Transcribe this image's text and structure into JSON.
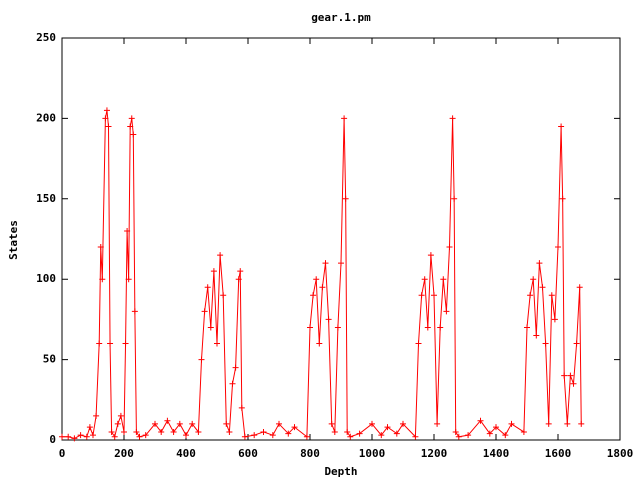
{
  "chart_data": {
    "type": "line",
    "title": "gear.1.pm",
    "x_label": "Depth",
    "y_label": "States",
    "color": "#ff0000",
    "xlim": [
      0,
      1800
    ],
    "xticks": [
      0,
      200,
      400,
      600,
      800,
      1000,
      1200,
      1400,
      1600,
      1800
    ],
    "ylim": [
      0,
      250
    ],
    "yticks": [
      0,
      50,
      100,
      150,
      200,
      250
    ],
    "grid": false,
    "x": [
      0,
      20,
      40,
      60,
      80,
      90,
      100,
      110,
      120,
      125,
      130,
      140,
      145,
      150,
      155,
      160,
      170,
      180,
      190,
      200,
      205,
      210,
      215,
      220,
      225,
      230,
      235,
      240,
      250,
      270,
      300,
      320,
      340,
      360,
      380,
      400,
      420,
      440,
      450,
      460,
      470,
      480,
      490,
      500,
      510,
      520,
      530,
      540,
      550,
      560,
      570,
      575,
      580,
      590,
      620,
      650,
      680,
      700,
      730,
      750,
      790,
      800,
      810,
      820,
      830,
      840,
      850,
      860,
      870,
      880,
      890,
      900,
      910,
      915,
      920,
      930,
      960,
      1000,
      1030,
      1050,
      1080,
      1100,
      1140,
      1150,
      1160,
      1170,
      1180,
      1190,
      1200,
      1210,
      1220,
      1230,
      1240,
      1250,
      1260,
      1265,
      1270,
      1280,
      1310,
      1350,
      1380,
      1400,
      1430,
      1450,
      1490,
      1500,
      1510,
      1520,
      1530,
      1540,
      1550,
      1560,
      1570,
      1580,
      1590,
      1600,
      1610,
      1615,
      1620,
      1630,
      1640,
      1650,
      1660,
      1670,
      1675
    ],
    "values": [
      2,
      2,
      1,
      3,
      2,
      8,
      3,
      15,
      60,
      120,
      100,
      200,
      205,
      195,
      60,
      5,
      2,
      10,
      15,
      5,
      60,
      130,
      100,
      195,
      200,
      190,
      80,
      5,
      2,
      3,
      10,
      5,
      12,
      5,
      10,
      3,
      10,
      5,
      50,
      80,
      95,
      70,
      105,
      60,
      115,
      90,
      10,
      5,
      35,
      45,
      100,
      105,
      20,
      2,
      3,
      5,
      3,
      10,
      4,
      8,
      2,
      70,
      90,
      100,
      60,
      95,
      110,
      75,
      10,
      5,
      70,
      110,
      200,
      150,
      5,
      2,
      4,
      10,
      3,
      8,
      4,
      10,
      2,
      60,
      90,
      100,
      70,
      115,
      90,
      10,
      70,
      100,
      80,
      120,
      200,
      150,
      5,
      2,
      3,
      12,
      4,
      8,
      3,
      10,
      5,
      70,
      90,
      100,
      65,
      110,
      95,
      60,
      10,
      90,
      75,
      120,
      195,
      150,
      40,
      10,
      40,
      35,
      60,
      95,
      10
    ]
  }
}
